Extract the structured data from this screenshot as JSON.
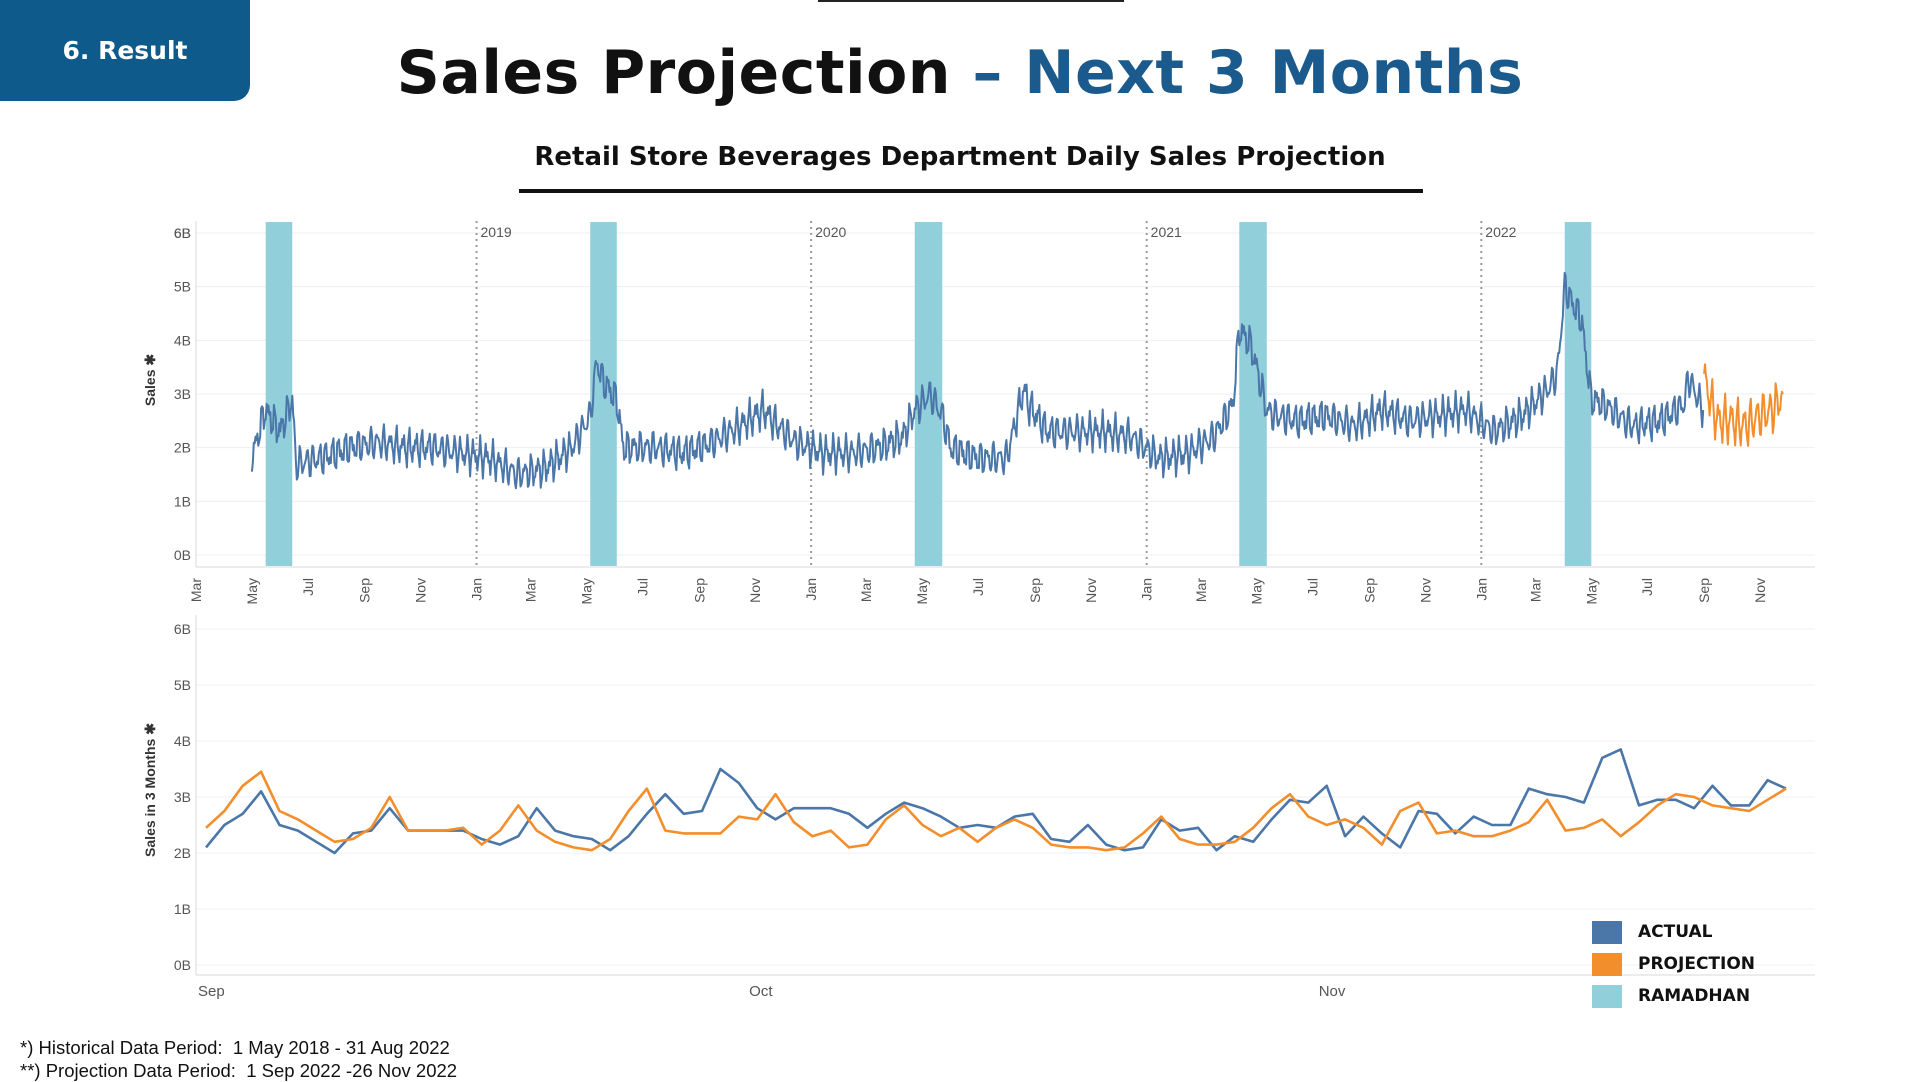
{
  "badge": {
    "label": "6. Result"
  },
  "title": {
    "part_a": "Sales Projection ",
    "part_b": "– Next 3 Months"
  },
  "subtitle": "Retail Store  Beverages Department Daily Sales Projection",
  "colors": {
    "actual": "#4a76a8",
    "projection": "#f28e2b",
    "ramadhan": "#91d0db",
    "badge": "#0e5a8a",
    "title_accent": "#1a5a8c"
  },
  "legend": [
    {
      "label": "ACTUAL",
      "color": "#4a76a8"
    },
    {
      "label": "PROJECTION",
      "color": "#f28e2b"
    },
    {
      "label": "RAMADHAN",
      "color": "#91d0db"
    }
  ],
  "footnotes": [
    "*) Historical Data Period:  1 May 2018 - 31 Aug 2022",
    "**) Projection Data Period:  1 Sep 2022 -26 Nov 2022"
  ],
  "chart_data": [
    {
      "type": "line",
      "ylabel": "Sales ✱",
      "y_ticks": [
        "0B",
        "1B",
        "2B",
        "3B",
        "4B",
        "5B",
        "6B",
        "6B"
      ],
      "y_tick_values": [
        0,
        1,
        2,
        3,
        4,
        5,
        6,
        6.2
      ],
      "ylim": [
        -0.2,
        6.2
      ],
      "x_range": [
        "2018-03-01",
        "2022-12-31"
      ],
      "x_ticks": [
        {
          "date": "2018-03-01",
          "label": "Mar"
        },
        {
          "date": "2018-05-01",
          "label": "May"
        },
        {
          "date": "2018-07-01",
          "label": "Jul"
        },
        {
          "date": "2018-09-01",
          "label": "Sep"
        },
        {
          "date": "2018-11-01",
          "label": "Nov"
        },
        {
          "date": "2019-01-01",
          "label": "Jan"
        },
        {
          "date": "2019-03-01",
          "label": "Mar"
        },
        {
          "date": "2019-05-01",
          "label": "May"
        },
        {
          "date": "2019-07-01",
          "label": "Jul"
        },
        {
          "date": "2019-09-01",
          "label": "Sep"
        },
        {
          "date": "2019-11-01",
          "label": "Nov"
        },
        {
          "date": "2020-01-01",
          "label": "Jan"
        },
        {
          "date": "2020-03-01",
          "label": "Mar"
        },
        {
          "date": "2020-05-01",
          "label": "May"
        },
        {
          "date": "2020-07-01",
          "label": "Jul"
        },
        {
          "date": "2020-09-01",
          "label": "Sep"
        },
        {
          "date": "2020-11-01",
          "label": "Nov"
        },
        {
          "date": "2021-01-01",
          "label": "Jan"
        },
        {
          "date": "2021-03-01",
          "label": "Mar"
        },
        {
          "date": "2021-05-01",
          "label": "May"
        },
        {
          "date": "2021-07-01",
          "label": "Jul"
        },
        {
          "date": "2021-09-01",
          "label": "Sep"
        },
        {
          "date": "2021-11-01",
          "label": "Nov"
        },
        {
          "date": "2022-01-01",
          "label": "Jan"
        },
        {
          "date": "2022-03-01",
          "label": "Mar"
        },
        {
          "date": "2022-05-01",
          "label": "May"
        },
        {
          "date": "2022-07-01",
          "label": "Jul"
        },
        {
          "date": "2022-09-01",
          "label": "Sep"
        },
        {
          "date": "2022-11-01",
          "label": "Nov"
        }
      ],
      "year_markers": [
        {
          "date": "2019-01-01",
          "label": "2019"
        },
        {
          "date": "2020-01-01",
          "label": "2020"
        },
        {
          "date": "2021-01-01",
          "label": "2021"
        },
        {
          "date": "2022-01-01",
          "label": "2022"
        }
      ],
      "ramadhan_bands": [
        {
          "start": "2018-05-16",
          "end": "2018-06-14"
        },
        {
          "start": "2019-05-05",
          "end": "2019-06-03"
        },
        {
          "start": "2020-04-23",
          "end": "2020-05-23"
        },
        {
          "start": "2021-04-12",
          "end": "2021-05-12"
        },
        {
          "start": "2022-04-02",
          "end": "2022-05-01"
        }
      ],
      "series": [
        {
          "name": "ACTUAL",
          "x": [
            "2018-05-01",
            "2018-05-15",
            "2018-06-01",
            "2018-06-14",
            "2018-06-18",
            "2018-07-15",
            "2018-08-15",
            "2018-09-15",
            "2018-10-15",
            "2018-11-15",
            "2018-12-15",
            "2019-01-15",
            "2019-02-15",
            "2019-03-15",
            "2019-04-15",
            "2019-05-05",
            "2019-05-12",
            "2019-05-20",
            "2019-06-03",
            "2019-06-10",
            "2019-07-15",
            "2019-08-15",
            "2019-09-15",
            "2019-10-15",
            "2019-11-10",
            "2019-11-20",
            "2019-12-15",
            "2020-01-15",
            "2020-02-15",
            "2020-03-15",
            "2020-04-10",
            "2020-04-23",
            "2020-05-10",
            "2020-05-23",
            "2020-06-01",
            "2020-07-01",
            "2020-08-01",
            "2020-08-20",
            "2020-08-25",
            "2020-09-15",
            "2020-10-15",
            "2020-11-15",
            "2020-12-15",
            "2021-01-15",
            "2021-02-15",
            "2021-03-15",
            "2021-04-05",
            "2021-04-12",
            "2021-04-25",
            "2021-05-12",
            "2021-05-20",
            "2021-06-15",
            "2021-07-15",
            "2021-08-15",
            "2021-09-15",
            "2021-10-15",
            "2021-11-15",
            "2021-12-15",
            "2022-01-15",
            "2022-02-15",
            "2022-03-15",
            "2022-03-25",
            "2022-04-02",
            "2022-04-10",
            "2022-04-20",
            "2022-05-01",
            "2022-05-15",
            "2022-06-15",
            "2022-07-15",
            "2022-08-10",
            "2022-08-15",
            "2022-08-31"
          ],
          "values": [
            1.8,
            2.7,
            2.3,
            2.9,
            1.7,
            1.8,
            2.0,
            2.1,
            2.0,
            2.0,
            1.9,
            1.8,
            1.5,
            1.6,
            2.0,
            2.6,
            3.6,
            3.2,
            2.9,
            2.0,
            2.0,
            1.9,
            2.1,
            2.4,
            2.7,
            2.5,
            2.1,
            1.9,
            1.9,
            2.0,
            2.2,
            2.7,
            3.0,
            2.6,
            2.0,
            1.8,
            1.8,
            3.1,
            2.8,
            2.3,
            2.3,
            2.3,
            2.2,
            1.8,
            1.9,
            2.2,
            2.8,
            4.2,
            3.9,
            2.7,
            2.6,
            2.5,
            2.6,
            2.4,
            2.7,
            2.5,
            2.6,
            2.7,
            2.3,
            2.6,
            3.1,
            3.4,
            5.0,
            4.7,
            4.4,
            2.9,
            2.8,
            2.4,
            2.5,
            2.8,
            3.3,
            2.7
          ]
        },
        {
          "name": "PROJECTION",
          "x": [
            "2022-09-01",
            "2022-09-15",
            "2022-10-01",
            "2022-10-15",
            "2022-11-01",
            "2022-11-15",
            "2022-11-26"
          ],
          "values": [
            3.3,
            2.5,
            2.5,
            2.4,
            2.6,
            2.7,
            3.0
          ]
        }
      ]
    },
    {
      "type": "line",
      "ylabel": "Sales in 3 Months ✱",
      "y_ticks": [
        "0B",
        "1B",
        "2B",
        "3B",
        "4B",
        "5B",
        "6B"
      ],
      "y_tick_values": [
        0,
        1,
        2,
        3,
        4,
        5,
        6
      ],
      "ylim": [
        -0.1,
        6.2
      ],
      "x_range": [
        "2022-09-01",
        "2022-11-26"
      ],
      "x_ticks": [
        {
          "date": "2022-09-01",
          "label": "Sep"
        },
        {
          "date": "2022-10-01",
          "label": "Oct"
        },
        {
          "date": "2022-11-01",
          "label": "Nov"
        }
      ],
      "series": [
        {
          "name": "ACTUAL",
          "x": [
            "2022-09-01",
            "2022-09-02",
            "2022-09-03",
            "2022-09-04",
            "2022-09-05",
            "2022-09-06",
            "2022-09-07",
            "2022-09-08",
            "2022-09-09",
            "2022-09-10",
            "2022-09-11",
            "2022-09-12",
            "2022-09-13",
            "2022-09-14",
            "2022-09-15",
            "2022-09-16",
            "2022-09-17",
            "2022-09-18",
            "2022-09-19",
            "2022-09-20",
            "2022-09-21",
            "2022-09-22",
            "2022-09-23",
            "2022-09-24",
            "2022-09-25",
            "2022-09-26",
            "2022-09-27",
            "2022-09-28",
            "2022-09-29",
            "2022-09-30",
            "2022-10-01",
            "2022-10-02",
            "2022-10-03",
            "2022-10-04",
            "2022-10-05",
            "2022-10-06",
            "2022-10-07",
            "2022-10-08",
            "2022-10-09",
            "2022-10-10",
            "2022-10-11",
            "2022-10-12",
            "2022-10-13",
            "2022-10-14",
            "2022-10-15",
            "2022-10-16",
            "2022-10-17",
            "2022-10-18",
            "2022-10-19",
            "2022-10-20",
            "2022-10-21",
            "2022-10-22",
            "2022-10-23",
            "2022-10-24",
            "2022-10-25",
            "2022-10-26",
            "2022-10-27",
            "2022-10-28",
            "2022-10-29",
            "2022-10-30",
            "2022-10-31",
            "2022-11-01",
            "2022-11-02",
            "2022-11-03",
            "2022-11-04",
            "2022-11-05",
            "2022-11-06",
            "2022-11-07",
            "2022-11-08",
            "2022-11-09",
            "2022-11-10",
            "2022-11-11",
            "2022-11-12",
            "2022-11-13",
            "2022-11-14",
            "2022-11-15",
            "2022-11-16",
            "2022-11-17",
            "2022-11-18",
            "2022-11-19",
            "2022-11-20",
            "2022-11-21",
            "2022-11-22",
            "2022-11-23",
            "2022-11-24",
            "2022-11-25",
            "2022-11-26"
          ],
          "values": [
            2.1,
            2.5,
            2.7,
            3.1,
            2.5,
            2.4,
            2.2,
            2.0,
            2.35,
            2.4,
            2.8,
            2.4,
            2.4,
            2.4,
            2.4,
            2.25,
            2.15,
            2.3,
            2.8,
            2.4,
            2.3,
            2.25,
            2.05,
            2.3,
            2.7,
            3.05,
            2.7,
            2.75,
            3.5,
            3.25,
            2.8,
            2.6,
            2.8,
            2.8,
            2.8,
            2.7,
            2.45,
            2.7,
            2.9,
            2.8,
            2.65,
            2.45,
            2.5,
            2.45,
            2.65,
            2.7,
            2.25,
            2.2,
            2.5,
            2.15,
            2.05,
            2.1,
            2.6,
            2.4,
            2.45,
            2.05,
            2.3,
            2.2,
            2.6,
            2.95,
            2.9,
            3.2,
            2.3,
            2.65,
            2.35,
            2.1,
            2.75,
            2.7,
            2.35,
            2.65,
            2.5,
            2.5,
            3.15,
            3.05,
            3.0,
            2.9,
            3.7,
            3.85,
            2.85,
            2.95,
            2.95,
            2.8,
            3.2,
            2.85,
            2.85,
            3.3,
            3.15
          ]
        },
        {
          "name": "PROJECTION",
          "x": [
            "2022-09-01",
            "2022-09-02",
            "2022-09-03",
            "2022-09-04",
            "2022-09-05",
            "2022-09-06",
            "2022-09-07",
            "2022-09-08",
            "2022-09-09",
            "2022-09-10",
            "2022-09-11",
            "2022-09-12",
            "2022-09-13",
            "2022-09-14",
            "2022-09-15",
            "2022-09-16",
            "2022-09-17",
            "2022-09-18",
            "2022-09-19",
            "2022-09-20",
            "2022-09-21",
            "2022-09-22",
            "2022-09-23",
            "2022-09-24",
            "2022-09-25",
            "2022-09-26",
            "2022-09-27",
            "2022-09-28",
            "2022-09-29",
            "2022-09-30",
            "2022-10-01",
            "2022-10-02",
            "2022-10-03",
            "2022-10-04",
            "2022-10-05",
            "2022-10-06",
            "2022-10-07",
            "2022-10-08",
            "2022-10-09",
            "2022-10-10",
            "2022-10-11",
            "2022-10-12",
            "2022-10-13",
            "2022-10-14",
            "2022-10-15",
            "2022-10-16",
            "2022-10-17",
            "2022-10-18",
            "2022-10-19",
            "2022-10-20",
            "2022-10-21",
            "2022-10-22",
            "2022-10-23",
            "2022-10-24",
            "2022-10-25",
            "2022-10-26",
            "2022-10-27",
            "2022-10-28",
            "2022-10-29",
            "2022-10-30",
            "2022-10-31",
            "2022-11-01",
            "2022-11-02",
            "2022-11-03",
            "2022-11-04",
            "2022-11-05",
            "2022-11-06",
            "2022-11-07",
            "2022-11-08",
            "2022-11-09",
            "2022-11-10",
            "2022-11-11",
            "2022-11-12",
            "2022-11-13",
            "2022-11-14",
            "2022-11-15",
            "2022-11-16",
            "2022-11-17",
            "2022-11-18",
            "2022-11-19",
            "2022-11-20",
            "2022-11-21",
            "2022-11-22",
            "2022-11-23",
            "2022-11-24",
            "2022-11-25",
            "2022-11-26"
          ],
          "values": [
            2.45,
            2.75,
            3.2,
            3.45,
            2.75,
            2.6,
            2.4,
            2.2,
            2.25,
            2.45,
            3.0,
            2.4,
            2.4,
            2.4,
            2.45,
            2.15,
            2.4,
            2.85,
            2.4,
            2.2,
            2.1,
            2.05,
            2.25,
            2.75,
            3.15,
            2.4,
            2.35,
            2.35,
            2.35,
            2.65,
            2.6,
            3.05,
            2.55,
            2.3,
            2.4,
            2.1,
            2.15,
            2.6,
            2.85,
            2.5,
            2.3,
            2.45,
            2.2,
            2.45,
            2.6,
            2.45,
            2.15,
            2.1,
            2.1,
            2.05,
            2.1,
            2.35,
            2.65,
            2.25,
            2.15,
            2.15,
            2.2,
            2.45,
            2.8,
            3.05,
            2.65,
            2.5,
            2.6,
            2.45,
            2.15,
            2.75,
            2.9,
            2.35,
            2.4,
            2.3,
            2.3,
            2.4,
            2.55,
            2.95,
            2.4,
            2.45,
            2.6,
            2.3,
            2.55,
            2.85,
            3.05,
            3.0,
            2.85,
            2.8,
            2.75,
            2.95,
            3.15
          ]
        }
      ]
    }
  ]
}
